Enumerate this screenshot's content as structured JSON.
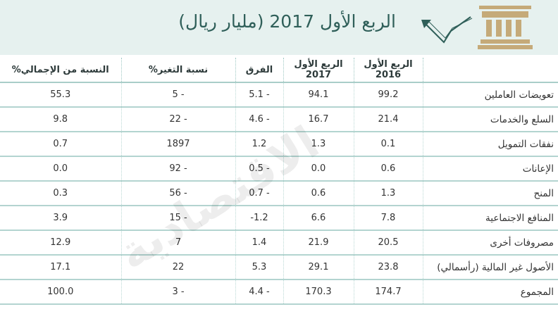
{
  "header": {
    "subtitle": "الربع الأول 2017 (مليار ريال)"
  },
  "colors": {
    "header_bg": "#e6f1ef",
    "accent": "#2f5f59",
    "border": "#a9cdc8",
    "icon_gold": "#c5aa79"
  },
  "icons": [
    "bank-building-icon",
    "growth-arrow-icon"
  ],
  "watermark": "الاقتصادية",
  "table": {
    "columns": [
      "",
      "الربع الأول 2016",
      "الربع الأول 2017",
      "الفرق",
      "نسبة التغير%",
      "النسبة من الإجمالي%"
    ],
    "rows": [
      {
        "item": "تعويضات العاملين",
        "q1_2016": "99.2",
        "q1_2017": "94.1",
        "diff": "5.1 -",
        "change": "5 -",
        "share": "55.3"
      },
      {
        "item": "السلع والخدمات",
        "q1_2016": "21.4",
        "q1_2017": "16.7",
        "diff": "4.6 -",
        "change": "22 -",
        "share": "9.8"
      },
      {
        "item": "نفقات التمويل",
        "q1_2016": "0.1",
        "q1_2017": "1.3",
        "diff": "1.2",
        "change": "1897",
        "share": "0.7"
      },
      {
        "item": "الإعانات",
        "q1_2016": "0.6",
        "q1_2017": "0.0",
        "diff": "0.5 -",
        "change": "92 -",
        "share": "0.0"
      },
      {
        "item": "المنح",
        "q1_2016": "1.3",
        "q1_2017": "0.6",
        "diff": "0.7 -",
        "change": "56 -",
        "share": "0.3"
      },
      {
        "item": "المنافع الاجتماعية",
        "q1_2016": "7.8",
        "q1_2017": "6.6",
        "diff": "-1.2",
        "change": "15 -",
        "share": "3.9"
      },
      {
        "item": "مصروفات أخرى",
        "q1_2016": "20.5",
        "q1_2017": "21.9",
        "diff": "1.4",
        "change": "7",
        "share": "12.9"
      },
      {
        "item": "الأصول غير المالية (رأسمالي)",
        "q1_2016": "23.8",
        "q1_2017": "29.1",
        "diff": "5.3",
        "change": "22",
        "share": "17.1"
      },
      {
        "item": "المجموع",
        "q1_2016": "174.7",
        "q1_2017": "170.3",
        "diff": "4.4 -",
        "change": "3 -",
        "share": "100.0"
      }
    ]
  }
}
